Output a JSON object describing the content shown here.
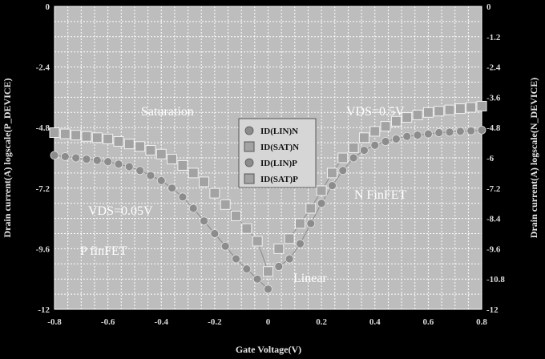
{
  "chart_data": {
    "type": "scatter",
    "title": "",
    "xlabel": "Gate Voltage(V)",
    "ylabel_left": "Drain current(A) logscale(P_DEVICE)",
    "ylabel_right": "Drain current(A) logscale(N_DEVICE)",
    "xlim": [
      -0.8,
      0.8
    ],
    "ylim": [
      -12,
      0
    ],
    "grid": true,
    "legend_position": "center",
    "x_ticks": [
      "-0.8",
      "-0.6",
      "-0.4",
      "-0.2",
      "0",
      "0.2",
      "0.4",
      "0.6",
      "0.8"
    ],
    "y_ticks_left": [
      "0",
      "-2.4",
      "-4.8",
      "-7.2",
      "-9.6",
      "-12"
    ],
    "y_ticks_right": [
      "0",
      "-1.2",
      "-2.4",
      "-3.6",
      "-4.8",
      "-6",
      "-7.2",
      "-8.4",
      "-9.6",
      "-10.8",
      "-12"
    ],
    "annotations": [
      "Saturation",
      "VDS=0.5V",
      "VDS=0.05V",
      "N FinFET",
      "P finFET",
      "Linear"
    ],
    "series": [
      {
        "name": "ID(LIN)N",
        "marker": "circle",
        "x": [
          0.04,
          0.08,
          0.12,
          0.16,
          0.2,
          0.24,
          0.28,
          0.32,
          0.36,
          0.4,
          0.44,
          0.48,
          0.52,
          0.56,
          0.6,
          0.64,
          0.68,
          0.72,
          0.76,
          0.8
        ],
        "y": [
          -10.3,
          -10.0,
          -9.4,
          -8.6,
          -7.8,
          -7.1,
          -6.5,
          -6.0,
          -5.7,
          -5.5,
          -5.35,
          -5.25,
          -5.15,
          -5.1,
          -5.05,
          -5.0,
          -4.98,
          -4.95,
          -4.93,
          -4.9
        ]
      },
      {
        "name": "ID(SAT)N",
        "marker": "square",
        "x": [
          0.04,
          0.08,
          0.12,
          0.16,
          0.2,
          0.24,
          0.28,
          0.32,
          0.36,
          0.4,
          0.44,
          0.48,
          0.52,
          0.56,
          0.6,
          0.64,
          0.68,
          0.72,
          0.76,
          0.8
        ],
        "y": [
          -9.6,
          -9.2,
          -8.6,
          -8.0,
          -7.3,
          -6.6,
          -6.0,
          -5.6,
          -5.2,
          -4.95,
          -4.75,
          -4.55,
          -4.4,
          -4.3,
          -4.2,
          -4.15,
          -4.1,
          -4.05,
          -4.0,
          -3.95
        ]
      },
      {
        "name": "ID(LIN)P",
        "marker": "circle",
        "x": [
          -0.8,
          -0.76,
          -0.72,
          -0.68,
          -0.64,
          -0.6,
          -0.56,
          -0.52,
          -0.48,
          -0.44,
          -0.4,
          -0.36,
          -0.32,
          -0.28,
          -0.24,
          -0.2,
          -0.16,
          -0.12,
          -0.08,
          -0.04,
          0.0
        ],
        "y": [
          -5.9,
          -5.95,
          -6.0,
          -6.05,
          -6.1,
          -6.15,
          -6.25,
          -6.35,
          -6.5,
          -6.7,
          -6.9,
          -7.2,
          -7.55,
          -8.0,
          -8.5,
          -9.0,
          -9.5,
          -10.0,
          -10.4,
          -10.8,
          -11.2
        ]
      },
      {
        "name": "ID(SAT)P",
        "marker": "square",
        "x": [
          -0.8,
          -0.76,
          -0.72,
          -0.68,
          -0.64,
          -0.6,
          -0.56,
          -0.52,
          -0.48,
          -0.44,
          -0.4,
          -0.36,
          -0.32,
          -0.28,
          -0.24,
          -0.2,
          -0.16,
          -0.12,
          -0.08,
          -0.04,
          0.0
        ],
        "y": [
          -5.0,
          -5.05,
          -5.1,
          -5.15,
          -5.2,
          -5.25,
          -5.35,
          -5.45,
          -5.55,
          -5.7,
          -5.85,
          -6.05,
          -6.3,
          -6.6,
          -6.95,
          -7.4,
          -7.85,
          -8.3,
          -8.8,
          -9.3,
          -10.5
        ]
      }
    ]
  }
}
